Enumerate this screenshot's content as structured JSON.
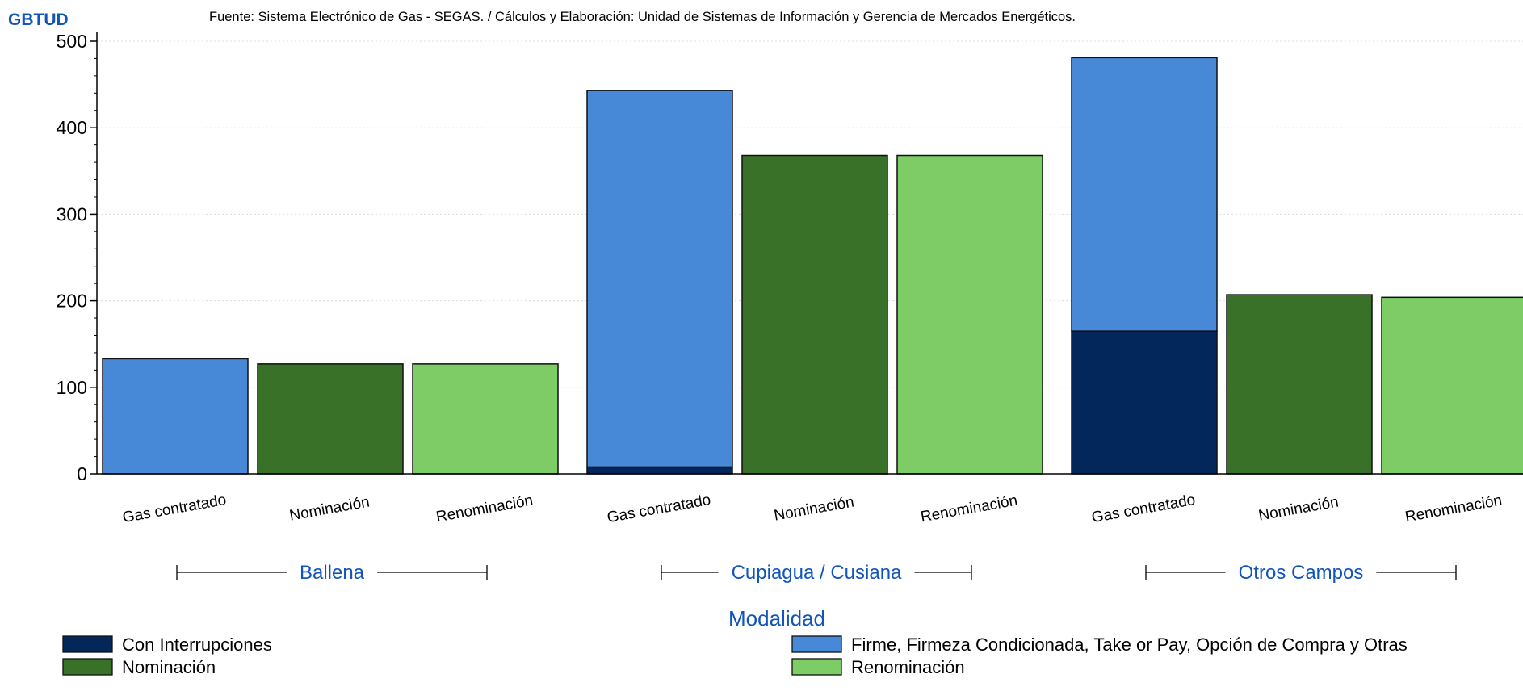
{
  "chart_data": {
    "type": "bar",
    "stacked": true,
    "source_note": "Fuente: Sistema Electrónico de Gas - SEGAS. / Cálculos y Elaboración: Unidad de Sistemas de Información y Gerencia de Mercados Energéticos.",
    "ylabel": "GBTUD",
    "xlabel": "Modalidad",
    "ylim": [
      0,
      510
    ],
    "yticks": [
      0,
      100,
      200,
      300,
      400,
      500
    ],
    "grid": "horizontal dotted",
    "legend_position": "bottom",
    "groups": [
      {
        "name": "Ballena",
        "bars": [
          {
            "label": "Gas contratado",
            "segments": [
              {
                "series": "Firme, Firmeza Condicionada, Take or Pay, Opción de Compra y Otras",
                "value": 133
              }
            ]
          },
          {
            "label": "Nominación",
            "segments": [
              {
                "series": "Nominación",
                "value": 127
              }
            ]
          },
          {
            "label": "Renominación",
            "segments": [
              {
                "series": "Renominación",
                "value": 127
              }
            ]
          }
        ]
      },
      {
        "name": "Cupiagua / Cusiana",
        "bars": [
          {
            "label": "Gas contratado",
            "segments": [
              {
                "series": "Con Interrupciones",
                "value": 8
              },
              {
                "series": "Firme, Firmeza Condicionada, Take or Pay, Opción de Compra y Otras",
                "value": 435
              }
            ]
          },
          {
            "label": "Nominación",
            "segments": [
              {
                "series": "Nominación",
                "value": 368
              }
            ]
          },
          {
            "label": "Renominación",
            "segments": [
              {
                "series": "Renominación",
                "value": 368
              }
            ]
          }
        ]
      },
      {
        "name": "Otros Campos",
        "bars": [
          {
            "label": "Gas contratado",
            "segments": [
              {
                "series": "Con Interrupciones",
                "value": 165
              },
              {
                "series": "Firme, Firmeza Condicionada, Take or Pay, Opción de Compra y Otras",
                "value": 316
              }
            ]
          },
          {
            "label": "Nominación",
            "segments": [
              {
                "series": "Nominación",
                "value": 207
              }
            ]
          },
          {
            "label": "Renominación",
            "segments": [
              {
                "series": "Renominación",
                "value": 204
              }
            ]
          }
        ]
      }
    ],
    "series": [
      {
        "name": "Con Interrupciones",
        "color": "#03275a"
      },
      {
        "name": "Firme, Firmeza Condicionada, Take or Pay, Opción de Compra y Otras",
        "color": "#4789d7"
      },
      {
        "name": "Nominación",
        "color": "#387127"
      },
      {
        "name": "Renominación",
        "color": "#7dcc65"
      }
    ],
    "colors": {
      "accent_text": "#1155bb",
      "axis": "#000000",
      "grid": "#dddddd"
    }
  }
}
